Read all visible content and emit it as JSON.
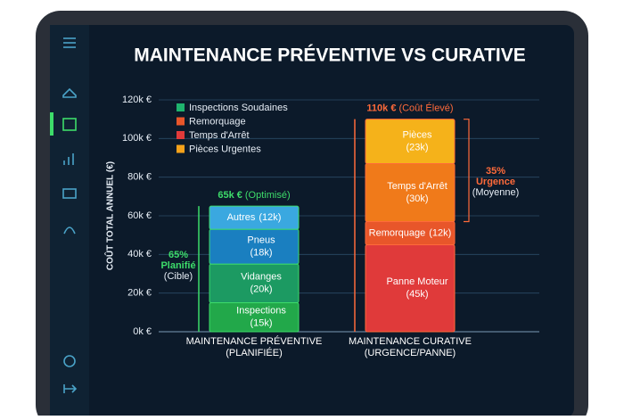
{
  "chart_data": {
    "type": "stacked-bar",
    "title": "MAINTENANCE PRÉVENTIVE VS CURATIVE",
    "y_label": "COÛT TOTAL ANNUEL (€)",
    "ylim": [
      0,
      120
    ],
    "yticks": [
      {
        "value": 0,
        "label": "0k €"
      },
      {
        "value": 20,
        "label": "20k €"
      },
      {
        "value": 40,
        "label": "40k €"
      },
      {
        "value": 60,
        "label": "60k €"
      },
      {
        "value": 80,
        "label": "80k €"
      },
      {
        "value": 100,
        "label": "100k €"
      },
      {
        "value": 120,
        "label": "120k €"
      }
    ],
    "grid": true,
    "legend": [
      {
        "name": "Inspections Soudaines",
        "color": "#1fb46e"
      },
      {
        "name": "Remorquage",
        "color": "#e8562a"
      },
      {
        "name": "Temps d'Arrêt",
        "color": "#e03a3a"
      },
      {
        "name": "Pièces Urgentes",
        "color": "#f5a21a"
      }
    ],
    "bars": [
      {
        "category": [
          "MAINTENANCE PRÉVENTIVE",
          "(PLANIFIÉE)"
        ],
        "total": 65,
        "total_label": "65k €",
        "total_note": "(Optimisé)",
        "color": "#3ddc6a",
        "share": {
          "value": 65,
          "label": "65%"
        },
        "share_lines": [
          "Planifié",
          "(Cible)"
        ],
        "segments": [
          {
            "name": "Inspections",
            "value": 15,
            "value_label": "(15k)",
            "color": "#22a84a"
          },
          {
            "name": "Vidanges",
            "value": 20,
            "value_label": "(20k)",
            "color": "#1c9a62"
          },
          {
            "name": "Pneus",
            "value": 18,
            "value_label": "(18k)",
            "color": "#1a7fc0"
          },
          {
            "name": "Autres",
            "value": 12,
            "value_label": "(12k)",
            "color": "#3aa8e0"
          }
        ]
      },
      {
        "category": [
          "MAINTENANCE CURATIVE",
          "(URGENCE/PANNE)"
        ],
        "total": 110,
        "total_label": "110k €",
        "total_note": "(Coût Élevé)",
        "color": "#ff6a3a",
        "share": {
          "value": 35,
          "label": "35%"
        },
        "share_lines": [
          "Urgence",
          "(Moyenne)"
        ],
        "segments": [
          {
            "name": "Panne Moteur",
            "value": 45,
            "value_label": "(45k)",
            "color": "#e03a3a"
          },
          {
            "name": "Remorquage",
            "value": 12,
            "value_label": "(12k)",
            "color": "#e8562a"
          },
          {
            "name": "Temps d'Arrêt",
            "value": 30,
            "value_label": "(30k)",
            "color": "#f07a1a"
          },
          {
            "name": "Pièces",
            "value": 23,
            "value_label": "(23k)",
            "color": "#f5b21a"
          }
        ]
      }
    ]
  }
}
